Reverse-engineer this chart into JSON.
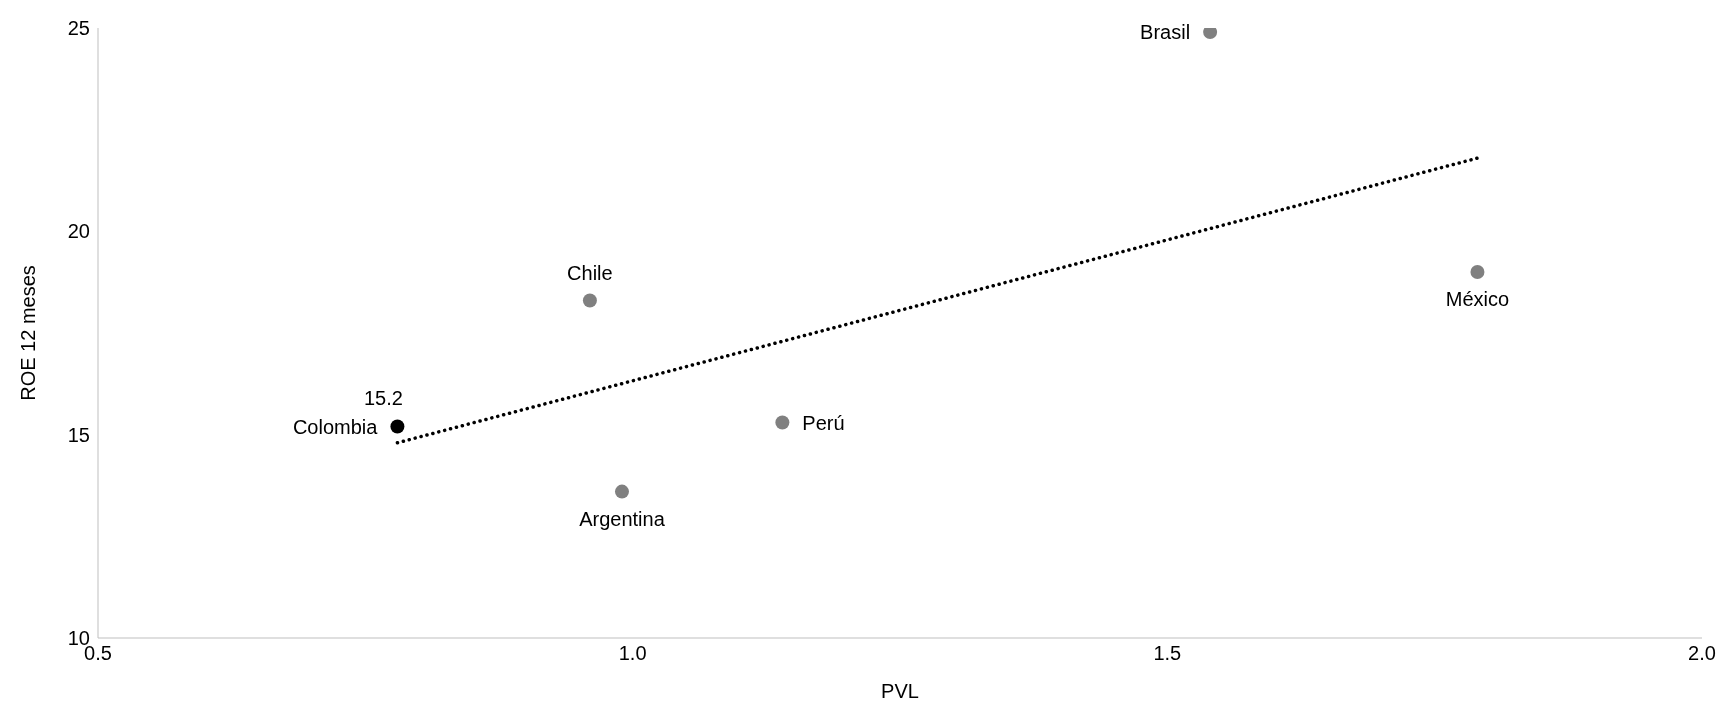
{
  "chart_data": {
    "type": "scatter",
    "xlabel": "PVL",
    "ylabel": "ROE 12 meses",
    "xlim": [
      0.5,
      2.0
    ],
    "xticks": [
      {
        "value": 0.5,
        "label": "0.5"
      },
      {
        "value": 1,
        "label": "1.0"
      },
      {
        "value": 1.5,
        "label": "1.5"
      },
      {
        "value": 2,
        "label": "2.0"
      }
    ],
    "ylim": [
      10,
      25
    ],
    "yticks": [
      10,
      15,
      20,
      25
    ],
    "grid": false,
    "legend": false,
    "marker": "circle",
    "series": [
      {
        "color": "#808080",
        "x": [
          0.96,
          0.99,
          1.14,
          1.54,
          1.79
        ],
        "values": [
          18.3,
          13.6,
          15.3,
          24.9,
          19.0
        ]
      },
      {
        "color": "#000000",
        "x": [
          0.78
        ],
        "values": [
          15.2
        ],
        "value_labels": [
          "15.2"
        ]
      },
      {
        "type": "line",
        "marker": "none",
        "line_style": "dotted",
        "color": "#000000",
        "x": [
          0.78,
          1.79
        ],
        "values": [
          14.8,
          21.8
        ]
      }
    ],
    "annotations": [
      {
        "text": "Chile",
        "x": 0.96,
        "y": 18.3
      },
      {
        "text": "Argentina",
        "x": 0.99,
        "y": 13.6
      },
      {
        "text": "Perú",
        "x": 1.14,
        "y": 15.3
      },
      {
        "text": "Brasil",
        "x": 1.54,
        "y": 24.9
      },
      {
        "text": "México",
        "x": 1.79,
        "y": 19.0
      },
      {
        "text": "Colombia",
        "x": 0.78,
        "y": 15.2
      }
    ]
  }
}
